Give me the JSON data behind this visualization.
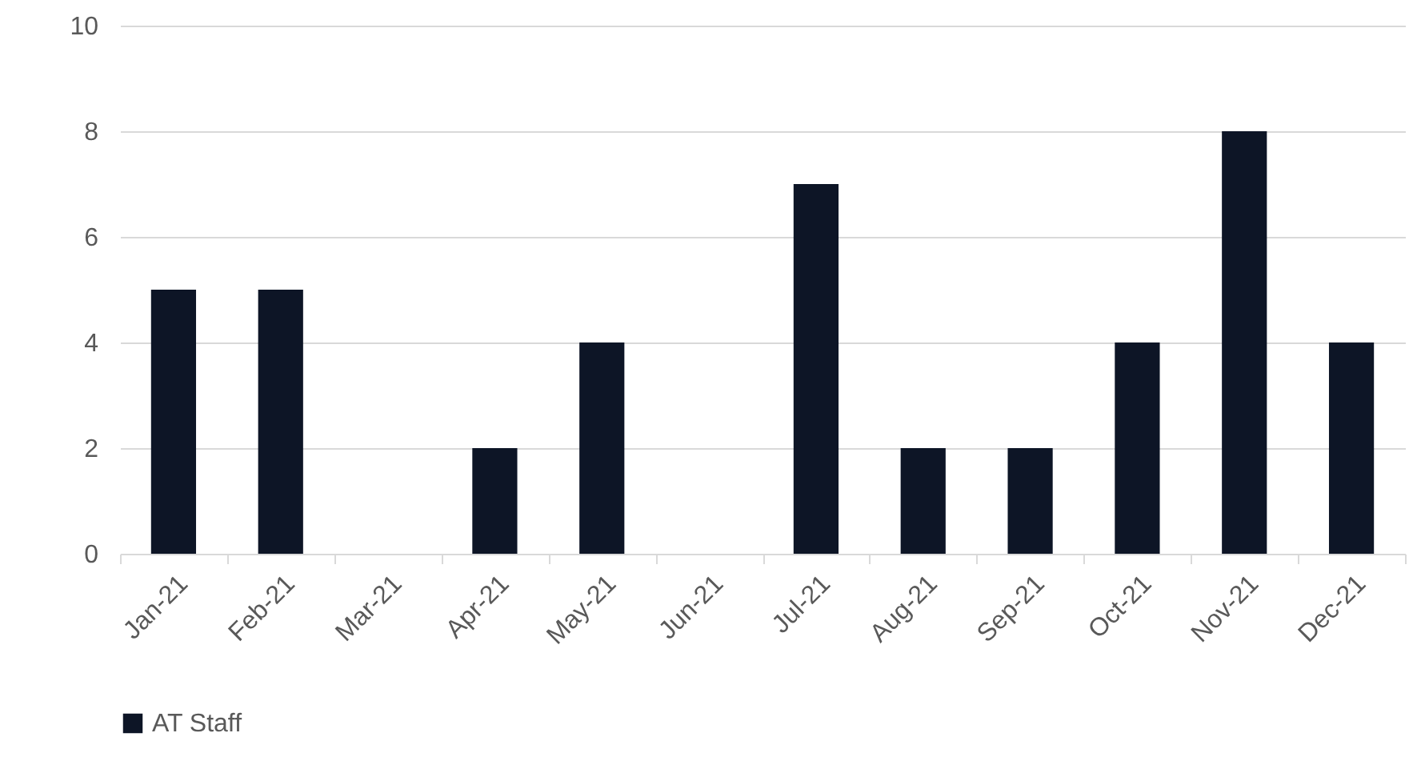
{
  "chart_data": {
    "type": "bar",
    "categories": [
      "Jan-21",
      "Feb-21",
      "Mar-21",
      "Apr-21",
      "May-21",
      "Jun-21",
      "Jul-21",
      "Aug-21",
      "Sep-21",
      "Oct-21",
      "Nov-21",
      "Dec-21"
    ],
    "series": [
      {
        "name": "AT Staff",
        "color": "#0d1526",
        "values": [
          5,
          5,
          0,
          2,
          4,
          0,
          7,
          2,
          2,
          4,
          8,
          4
        ]
      }
    ],
    "ylim": [
      0,
      10
    ],
    "yticks": [
      0,
      2,
      4,
      6,
      8,
      10
    ],
    "grid": "y",
    "legend": "bottom"
  }
}
